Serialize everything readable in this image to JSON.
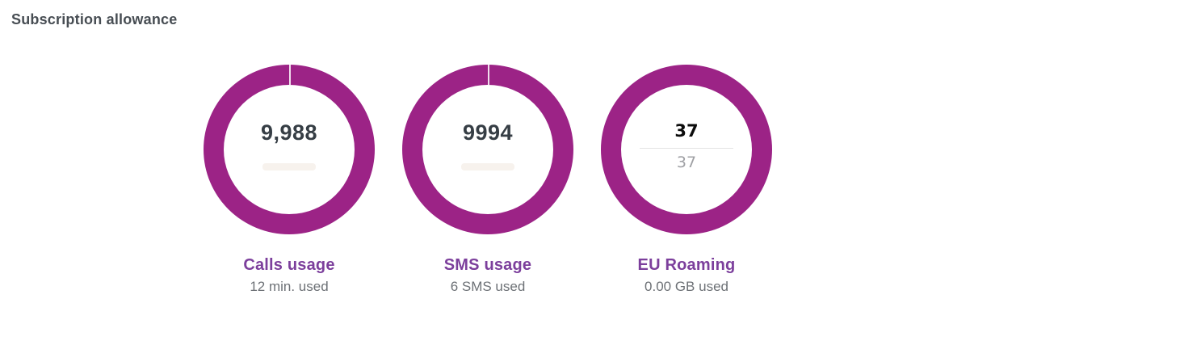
{
  "page": {
    "title": "Subscription allowance"
  },
  "colors": {
    "ring": "#9C2386",
    "accent_label": "#7C3F9C",
    "title_text": "#474D53",
    "value_text": "#363E45",
    "caption_text": "#6D7176",
    "fraction_total_text": "#9FA0A4",
    "divider": "#E3E3E3"
  },
  "gauges": [
    {
      "label": "Calls usage",
      "value": "9,988",
      "caption": "12 min. used",
      "ring_gap_at_top": true
    },
    {
      "label": "SMS usage",
      "value": "9994",
      "caption": "6 SMS used",
      "ring_gap_at_top": true
    },
    {
      "label": "EU Roaming",
      "value_top": "37",
      "value_bottom": "37",
      "caption": "0.00 GB used",
      "ring_gap_at_top": false
    }
  ]
}
